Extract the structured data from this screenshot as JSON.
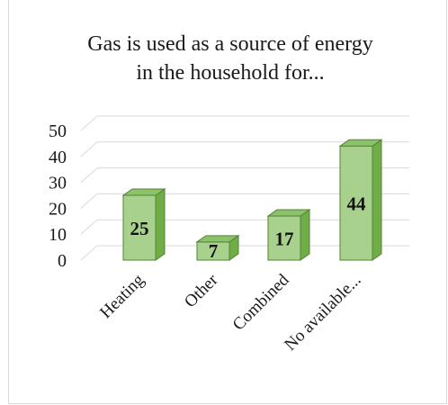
{
  "chart_data": {
    "type": "bar",
    "title_line1": "Gas is used as a source of energy",
    "title_line2": "in the household for...",
    "categories": [
      "Heating",
      "Other",
      "Combined",
      "No available..."
    ],
    "values": [
      25,
      7,
      17,
      44
    ],
    "data_labels": [
      "25",
      "7",
      "17",
      "44"
    ],
    "y_ticks": [
      "0",
      "10",
      "20",
      "30",
      "40",
      "50"
    ],
    "ylim": [
      0,
      50
    ],
    "grid": true,
    "bar_style": "3d",
    "colors": {
      "bar_front": "#a9d18e",
      "bar_side": "#70ad47",
      "bar_top": "#8cc36a",
      "bar_edge": "#548235",
      "grid": "#d9d9d9"
    }
  }
}
